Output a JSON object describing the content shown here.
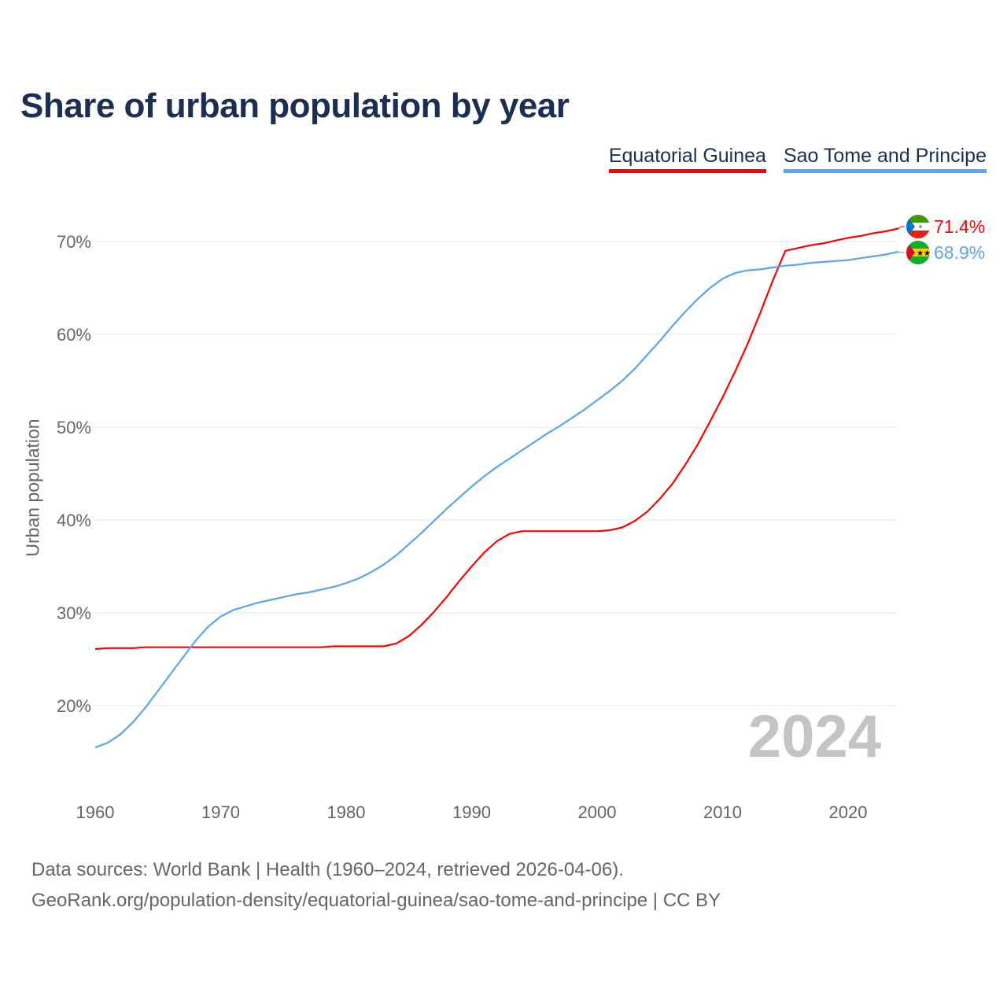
{
  "chart_data": {
    "type": "line",
    "title": "Share of urban population by year",
    "xlabel": "",
    "ylabel": "Urban population",
    "xlim": [
      1960,
      2024
    ],
    "ylim": [
      13,
      73
    ],
    "grid": true,
    "legend_placement": "top-right",
    "x_ticks": [
      "1960",
      "1970",
      "1980",
      "1990",
      "2000",
      "2010",
      "2020"
    ],
    "y_ticks": [
      "20%",
      "30%",
      "40%",
      "50%",
      "60%",
      "70%"
    ],
    "year_watermark": "2024",
    "x": [
      1960,
      1961,
      1962,
      1963,
      1964,
      1965,
      1966,
      1967,
      1968,
      1969,
      1970,
      1971,
      1972,
      1973,
      1974,
      1975,
      1976,
      1977,
      1978,
      1979,
      1980,
      1981,
      1982,
      1983,
      1984,
      1985,
      1986,
      1987,
      1988,
      1989,
      1990,
      1991,
      1992,
      1993,
      1994,
      1995,
      1996,
      1997,
      1998,
      1999,
      2000,
      2001,
      2002,
      2003,
      2004,
      2005,
      2006,
      2007,
      2008,
      2009,
      2010,
      2011,
      2012,
      2013,
      2014,
      2015,
      2016,
      2017,
      2018,
      2019,
      2020,
      2021,
      2022,
      2023,
      2024
    ],
    "series": [
      {
        "name": "Equatorial Guinea",
        "color": "#ff0000",
        "end_label": "71.4%",
        "values": [
          26.1,
          26.2,
          26.2,
          26.2,
          26.3,
          26.3,
          26.3,
          26.3,
          26.3,
          26.3,
          26.3,
          26.3,
          26.3,
          26.3,
          26.3,
          26.3,
          26.3,
          26.3,
          26.3,
          26.4,
          26.4,
          26.4,
          26.4,
          26.4,
          26.7,
          27.5,
          28.7,
          30.1,
          31.7,
          33.4,
          35.0,
          36.5,
          37.7,
          38.5,
          38.8,
          38.8,
          38.8,
          38.8,
          38.8,
          38.8,
          38.8,
          38.9,
          39.2,
          39.9,
          40.9,
          42.3,
          43.9,
          45.9,
          48.1,
          50.6,
          53.2,
          56.0,
          59.0,
          62.3,
          65.8,
          69.0,
          69.3,
          69.6,
          69.8,
          70.1,
          70.4,
          70.6,
          70.9,
          71.1,
          71.4
        ]
      },
      {
        "name": "Sao Tome and Principe",
        "color": "#5ba4ee",
        "end_label": "68.9%",
        "values": [
          15.5,
          16.0,
          16.9,
          18.2,
          19.8,
          21.6,
          23.4,
          25.2,
          27.0,
          28.5,
          29.6,
          30.3,
          30.7,
          31.1,
          31.4,
          31.7,
          32.0,
          32.2,
          32.5,
          32.8,
          33.2,
          33.7,
          34.4,
          35.2,
          36.2,
          37.4,
          38.6,
          39.9,
          41.2,
          42.4,
          43.6,
          44.7,
          45.7,
          46.6,
          47.5,
          48.4,
          49.3,
          50.1,
          51.0,
          51.9,
          52.9,
          53.9,
          55.0,
          56.3,
          57.8,
          59.3,
          60.9,
          62.4,
          63.8,
          65.0,
          66.0,
          66.6,
          66.9,
          67.0,
          67.2,
          67.4,
          67.5,
          67.7,
          67.8,
          67.9,
          68.0,
          68.2,
          68.4,
          68.6,
          68.9
        ]
      }
    ]
  },
  "footer": {
    "line1": "Data sources: World Bank | Health (1960–2024, retrieved 2026-04-06).",
    "line2": "GeoRank.org/population-density/equatorial-guinea/sao-tome-and-principe | CC BY"
  }
}
